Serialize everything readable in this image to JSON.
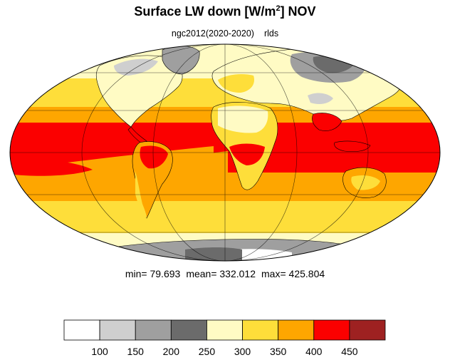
{
  "title": {
    "main": "Surface LW down [W/m",
    "sup": "2",
    "suffix": "]  NOV"
  },
  "subtitle": {
    "run": "ngc2012(2020-2020)",
    "var": "rlds"
  },
  "stats": {
    "min": "min=  79.693",
    "mean": "mean= 332.012",
    "max": "max= 425.804"
  },
  "legend": {
    "colors": [
      "#ffffff",
      "#cfcfcf",
      "#9f9f9f",
      "#6b6b6b",
      "#fffbc4",
      "#fede3a",
      "#fea600",
      "#fb0000",
      "#9e2121"
    ],
    "labels": [
      "100",
      "150",
      "200",
      "250",
      "300",
      "350",
      "400",
      "450"
    ]
  },
  "map_data": {
    "type": "filled-contour",
    "projection": "mollweide",
    "variable": "rlds",
    "units": "W/m2",
    "contour_levels": [
      100,
      150,
      200,
      250,
      300,
      350,
      400,
      450
    ],
    "gridlines": true
  }
}
